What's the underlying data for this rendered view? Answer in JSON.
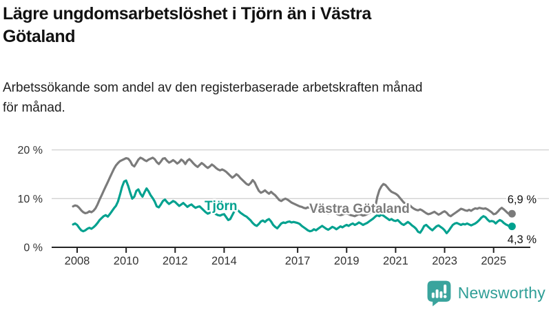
{
  "header": {
    "title_line1": "Lägre ungdomsarbetslöshet i Tjörn än i Västra",
    "title_line2": "Götaland",
    "subtitle_line1": "Arbetssökande som andel av den registerbaserade arbetskraften månad",
    "subtitle_line2": "för månad."
  },
  "footer": {
    "brand": "Newsworthy",
    "logo_color": "#3AA49D",
    "brand_text_color": "#2E9E96"
  },
  "chart_data": {
    "type": "line",
    "title": "Lägre ungdomsarbetslöshet i Tjörn än i Västra Götaland",
    "subtitle": "Arbetssökande som andel av den registerbaserade arbetskraften månad för månad.",
    "unit": "%",
    "grid": "horizontal-only",
    "legend_position": "inline-labels",
    "x_start_decimal_year": 2007.8333,
    "x_interval": "month",
    "x_end_decimal_year": 2025.75,
    "x_ticks": [
      2008,
      2010,
      2012,
      2014,
      2017,
      2019,
      2021,
      2023,
      2025
    ],
    "y_ticks": [
      {
        "value": 0,
        "label": "0 %"
      },
      {
        "value": 10,
        "label": "10 %"
      },
      {
        "value": 20,
        "label": "20 %"
      }
    ],
    "ylim": [
      0,
      21.5
    ],
    "axis_color": "#222222",
    "gridline_color": "#d2d2d2",
    "tick_label_color": "#333333",
    "end_label_color": "#111111",
    "series": [
      {
        "name": "Västra Götaland",
        "color": "#7B7B7B",
        "end_label": "6,9 %",
        "last_value": 6.9,
        "values": [
          8.4,
          8.6,
          8.5,
          8.1,
          7.6,
          7.2,
          7.0,
          7.1,
          7.4,
          7.2,
          7.5,
          8.0,
          8.8,
          9.8,
          10.7,
          11.6,
          12.5,
          13.4,
          14.3,
          15.2,
          16.1,
          16.8,
          17.3,
          17.7,
          17.9,
          18.1,
          18.3,
          18.2,
          17.7,
          16.9,
          16.6,
          17.3,
          18.0,
          18.4,
          18.2,
          17.9,
          17.7,
          18.0,
          18.2,
          18.4,
          18.1,
          17.5,
          17.1,
          17.6,
          18.2,
          18.3,
          17.8,
          17.4,
          17.6,
          17.9,
          17.6,
          17.2,
          17.5,
          18.0,
          17.7,
          17.1,
          17.8,
          18.1,
          17.7,
          17.2,
          16.8,
          16.5,
          16.9,
          17.3,
          17.0,
          16.6,
          16.3,
          16.6,
          17.0,
          16.7,
          16.3,
          16.0,
          15.8,
          16.0,
          15.8,
          15.5,
          15.1,
          14.7,
          14.3,
          14.6,
          15.0,
          14.7,
          14.2,
          13.8,
          13.4,
          13.0,
          12.8,
          13.2,
          13.8,
          13.3,
          12.4,
          11.6,
          11.2,
          11.4,
          11.7,
          11.3,
          11.0,
          11.4,
          11.0,
          10.7,
          10.2,
          9.7,
          9.5,
          9.8,
          10.0,
          9.8,
          9.5,
          9.2,
          9.0,
          8.8,
          8.6,
          8.4,
          8.3,
          8.1,
          8.0,
          8.2,
          8.1,
          7.9,
          7.6,
          7.4,
          7.3,
          7.4,
          7.5,
          7.3,
          7.1,
          6.9,
          7.0,
          7.2,
          7.1,
          6.9,
          6.7,
          6.6,
          6.7,
          6.9,
          7.0,
          6.8,
          6.6,
          6.5,
          6.4,
          6.6,
          6.8,
          6.7,
          6.5,
          6.6,
          6.8,
          7.0,
          7.2,
          7.4,
          8.2,
          10.3,
          11.7,
          12.5,
          13.0,
          12.8,
          12.3,
          11.8,
          11.4,
          11.2,
          11.0,
          10.7,
          10.2,
          9.7,
          9.2,
          9.0,
          8.9,
          8.6,
          8.2,
          7.9,
          7.7,
          7.6,
          7.8,
          7.6,
          7.3,
          7.0,
          6.8,
          6.9,
          7.1,
          7.3,
          7.0,
          6.7,
          6.9,
          7.2,
          7.4,
          7.1,
          6.6,
          6.4,
          6.7,
          7.0,
          7.3,
          7.6,
          7.9,
          7.8,
          7.6,
          7.5,
          7.7,
          7.5,
          7.8,
          8.0,
          7.9,
          8.1,
          8.0,
          7.9,
          8.0,
          7.8,
          7.5,
          7.2,
          6.8,
          6.9,
          7.3,
          7.8,
          8.1,
          7.8,
          7.4,
          7.0,
          6.7,
          6.9
        ]
      },
      {
        "name": "Tjörn",
        "color": "#00A18F",
        "end_label": "4,3 %",
        "last_value": 4.3,
        "values": [
          4.7,
          4.9,
          4.6,
          4.0,
          3.5,
          3.3,
          3.5,
          3.8,
          4.0,
          3.8,
          4.1,
          4.5,
          5.0,
          5.6,
          6.0,
          6.4,
          6.6,
          6.3,
          6.8,
          7.4,
          8.0,
          8.5,
          9.4,
          10.8,
          12.4,
          13.5,
          13.7,
          12.6,
          11.2,
          10.0,
          10.4,
          11.6,
          11.9,
          11.0,
          10.4,
          11.3,
          12.1,
          11.5,
          10.7,
          10.1,
          9.4,
          8.4,
          8.2,
          8.8,
          9.5,
          9.8,
          9.3,
          8.9,
          9.2,
          9.5,
          9.3,
          8.9,
          8.5,
          8.8,
          9.1,
          8.7,
          8.3,
          8.6,
          8.8,
          8.4,
          8.1,
          8.3,
          8.4,
          8.0,
          7.6,
          7.2,
          6.9,
          7.1,
          7.4,
          7.1,
          6.8,
          6.6,
          6.5,
          6.7,
          6.8,
          6.2,
          5.6,
          5.8,
          6.6,
          7.4,
          7.8,
          7.5,
          7.1,
          6.8,
          6.5,
          6.3,
          5.9,
          5.5,
          5.0,
          4.6,
          4.4,
          4.8,
          5.3,
          5.5,
          5.2,
          5.6,
          5.8,
          5.3,
          4.6,
          4.2,
          3.9,
          4.4,
          4.9,
          5.1,
          5.0,
          5.2,
          5.3,
          5.1,
          5.2,
          5.1,
          5.0,
          4.8,
          4.4,
          4.1,
          3.8,
          3.5,
          3.3,
          3.4,
          3.7,
          3.5,
          3.8,
          4.1,
          4.4,
          4.1,
          3.8,
          3.6,
          3.9,
          4.2,
          4.0,
          3.7,
          4.0,
          4.3,
          4.1,
          4.4,
          4.6,
          4.4,
          4.7,
          4.9,
          4.6,
          4.8,
          5.1,
          4.9,
          4.6,
          4.8,
          5.0,
          5.3,
          5.6,
          5.9,
          6.3,
          6.6,
          6.4,
          6.7,
          6.5,
          6.2,
          5.9,
          5.6,
          5.8,
          5.5,
          5.4,
          5.6,
          5.2,
          4.8,
          4.6,
          4.9,
          5.2,
          4.9,
          4.5,
          4.2,
          3.8,
          3.2,
          3.0,
          3.6,
          4.4,
          4.6,
          4.2,
          3.8,
          3.5,
          3.9,
          4.3,
          4.5,
          4.2,
          3.9,
          3.5,
          2.9,
          3.4,
          4.0,
          4.6,
          4.9,
          5.0,
          4.8,
          4.6,
          4.8,
          4.7,
          4.9,
          4.7,
          4.5,
          4.7,
          4.9,
          5.2,
          5.6,
          6.1,
          6.4,
          6.2,
          5.7,
          5.3,
          5.4,
          5.3,
          4.9,
          5.3,
          5.6,
          5.4,
          5.0,
          4.7,
          4.5,
          4.2,
          4.3
        ]
      }
    ]
  }
}
